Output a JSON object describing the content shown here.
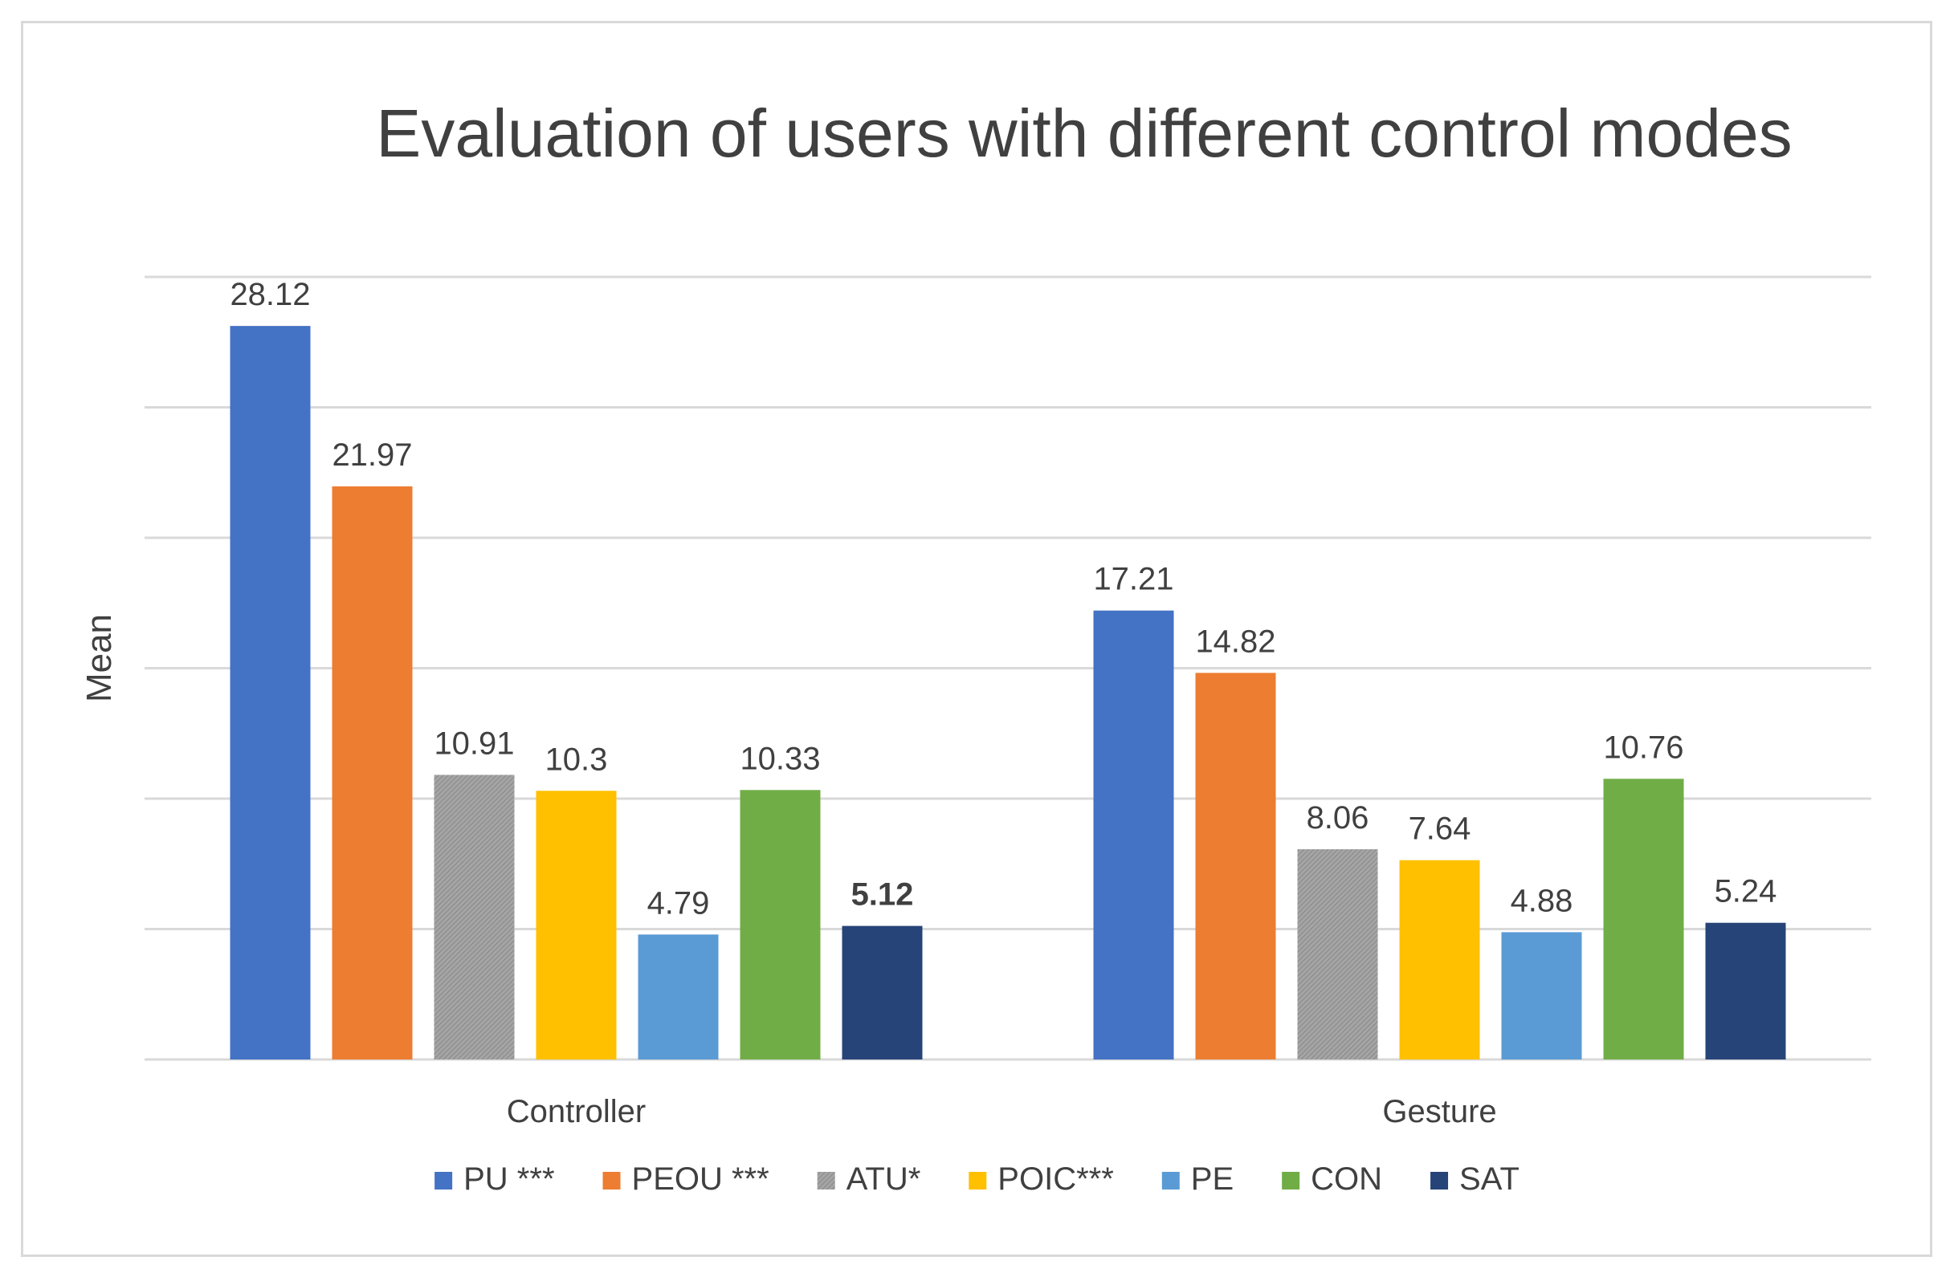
{
  "chart_data": {
    "type": "bar",
    "title": "Evaluation of users with different control modes",
    "xlabel": "",
    "ylabel": "Mean",
    "ylim": [
      0,
      30
    ],
    "grid": true,
    "legend_position": "bottom",
    "categories": [
      "Controller",
      "Gesture"
    ],
    "series": [
      {
        "name": "PU ***",
        "color": "#4472C4",
        "values": [
          28.12,
          17.21
        ],
        "pattern": "solid",
        "bold_labels": [
          false,
          false
        ]
      },
      {
        "name": "PEOU ***",
        "color": "#ED7D31",
        "values": [
          21.97,
          14.82
        ],
        "pattern": "solid",
        "bold_labels": [
          false,
          false
        ]
      },
      {
        "name": "ATU*",
        "color": "#A5A5A5",
        "values": [
          10.91,
          8.06
        ],
        "pattern": "hatch",
        "bold_labels": [
          false,
          false
        ]
      },
      {
        "name": "POIC***",
        "color": "#FFC000",
        "values": [
          10.3,
          7.64
        ],
        "pattern": "solid",
        "bold_labels": [
          false,
          false
        ]
      },
      {
        "name": "PE",
        "color": "#5B9BD5",
        "values": [
          4.79,
          4.88
        ],
        "pattern": "solid",
        "bold_labels": [
          false,
          false
        ]
      },
      {
        "name": "CON",
        "color": "#70AD47",
        "values": [
          10.33,
          10.76
        ],
        "pattern": "solid",
        "bold_labels": [
          false,
          false
        ]
      },
      {
        "name": "SAT",
        "color": "#264478",
        "values": [
          5.12,
          5.24
        ],
        "pattern": "solid",
        "bold_labels": [
          true,
          false
        ]
      }
    ],
    "data_labels": [
      [
        "28.12",
        "17.21"
      ],
      [
        "21.97",
        "14.82"
      ],
      [
        "10.91",
        "8.06"
      ],
      [
        "10.3",
        "7.64"
      ],
      [
        "4.79",
        "4.88"
      ],
      [
        "10.33",
        "10.76"
      ],
      [
        "5.12",
        "5.24"
      ]
    ]
  }
}
